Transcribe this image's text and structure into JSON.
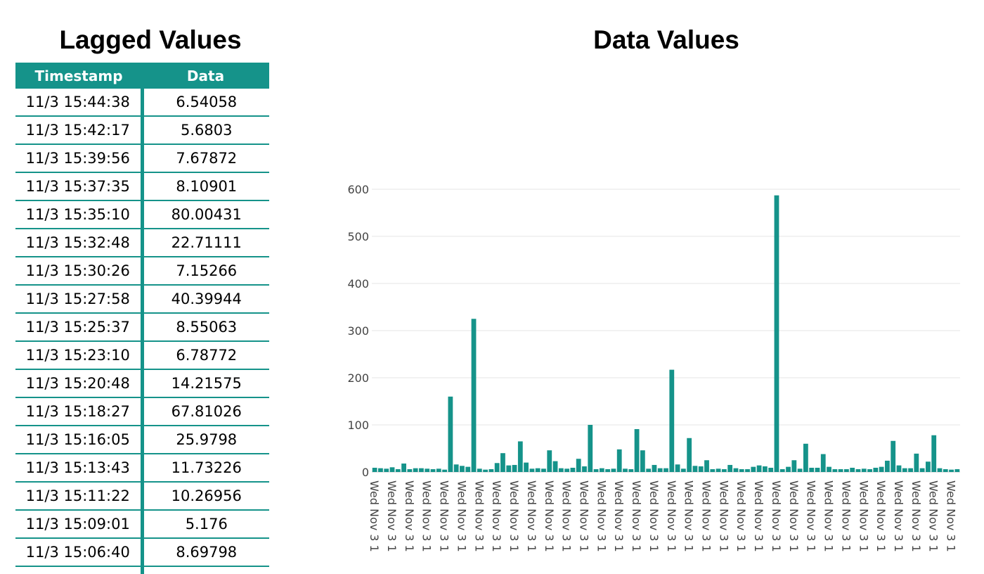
{
  "colors": {
    "accent": "#15938a",
    "grid": "#e6e6e6"
  },
  "left_panel": {
    "title": "Lagged Values",
    "columns": [
      "Timestamp",
      "Data"
    ],
    "rows": [
      {
        "timestamp": "11/3 15:44:38",
        "data": "6.54058"
      },
      {
        "timestamp": "11/3 15:42:17",
        "data": "5.6803"
      },
      {
        "timestamp": "11/3 15:39:56",
        "data": "7.67872"
      },
      {
        "timestamp": "11/3 15:37:35",
        "data": "8.10901"
      },
      {
        "timestamp": "11/3 15:35:10",
        "data": "80.00431"
      },
      {
        "timestamp": "11/3 15:32:48",
        "data": "22.71111"
      },
      {
        "timestamp": "11/3 15:30:26",
        "data": "7.15266"
      },
      {
        "timestamp": "11/3 15:27:58",
        "data": "40.39944"
      },
      {
        "timestamp": "11/3 15:25:37",
        "data": "8.55063"
      },
      {
        "timestamp": "11/3 15:23:10",
        "data": "6.78772"
      },
      {
        "timestamp": "11/3 15:20:48",
        "data": "14.21575"
      },
      {
        "timestamp": "11/3 15:18:27",
        "data": "67.81026"
      },
      {
        "timestamp": "11/3 15:16:05",
        "data": "25.9798"
      },
      {
        "timestamp": "11/3 15:13:43",
        "data": "11.73226"
      },
      {
        "timestamp": "11/3 15:11:22",
        "data": "10.26956"
      },
      {
        "timestamp": "11/3 15:09:01",
        "data": "5.176"
      },
      {
        "timestamp": "11/3 15:06:40",
        "data": "8.69798"
      }
    ]
  },
  "chart_data": {
    "type": "bar",
    "title": "Data Values",
    "xlabel": "",
    "ylabel": "",
    "ylim": [
      0,
      600
    ],
    "yticks": [
      0,
      100,
      200,
      300,
      400,
      500,
      600
    ],
    "grid": true,
    "x_tick_label": "Wed Nov 3 1",
    "x_tick_every": 3,
    "values": [
      9,
      8,
      7,
      10,
      6,
      18,
      6,
      8,
      8,
      7,
      6,
      7,
      5,
      160,
      16,
      13,
      11,
      325,
      7,
      5,
      6,
      19,
      40,
      14,
      15,
      65,
      20,
      7,
      8,
      7,
      46,
      23,
      8,
      7,
      9,
      28,
      12,
      100,
      6,
      8,
      6,
      7,
      48,
      7,
      6,
      91,
      46,
      7,
      15,
      8,
      8,
      217,
      16,
      7,
      72,
      13,
      12,
      25,
      6,
      7,
      6,
      15,
      8,
      6,
      6,
      11,
      14,
      12,
      9,
      587,
      6,
      11,
      25,
      7,
      60,
      9,
      9,
      38,
      11,
      6,
      6,
      6,
      9,
      6,
      7,
      6,
      9,
      11,
      24,
      66,
      14,
      8,
      8,
      39,
      8,
      22,
      78,
      8,
      6,
      5,
      6
    ]
  }
}
